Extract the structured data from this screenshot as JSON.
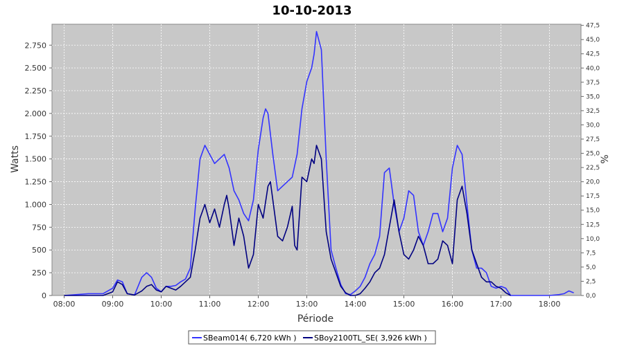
{
  "chart_data": {
    "type": "line",
    "title": "10-10-2013",
    "xlabel": "Période",
    "ylabel": "Watts",
    "y2label": "%",
    "xlim": [
      7.75,
      18.65
    ],
    "ylim": [
      0,
      2980
    ],
    "y2lim": [
      0,
      47.7
    ],
    "grid": true,
    "legend_position": "bottom",
    "plot_background": "#c8c8c8",
    "x_ticks": [
      8,
      9,
      10,
      11,
      12,
      13,
      14,
      15,
      16,
      17,
      18
    ],
    "x_tick_labels": [
      "08:00",
      "09:00",
      "10:00",
      "11:00",
      "12:00",
      "13:00",
      "14:00",
      "15:00",
      "16:00",
      "17:00",
      "18:00"
    ],
    "y_ticks": [
      0,
      250,
      500,
      750,
      1000,
      1250,
      1500,
      1750,
      2000,
      2250,
      2500,
      2750
    ],
    "y_tick_labels": [
      "0",
      "250",
      "500",
      "750",
      "1.000",
      "1.250",
      "1.500",
      "1.750",
      "2.000",
      "2.250",
      "2.500",
      "2.750"
    ],
    "y2_ticks": [
      0,
      2.5,
      5,
      7.5,
      10,
      12.5,
      15,
      17.5,
      20,
      22.5,
      25,
      27.5,
      30,
      32.5,
      35,
      37.5,
      40,
      42.5,
      45,
      47.5
    ],
    "y2_tick_labels": [
      "0,0",
      "2,5",
      "5,0",
      "7,5",
      "10,0",
      "12,5",
      "15,0",
      "17,5",
      "20,0",
      "22,5",
      "25,0",
      "27,5",
      "30,0",
      "32,5",
      "35,0",
      "37,5",
      "40,0",
      "42,5",
      "45,0",
      "47,5"
    ],
    "series": [
      {
        "name": "SBeam014( 6,720 kWh )",
        "color": "#3333ff",
        "x": [
          8.0,
          8.5,
          8.8,
          9.0,
          9.1,
          9.2,
          9.3,
          9.45,
          9.6,
          9.7,
          9.8,
          9.9,
          10.0,
          10.1,
          10.2,
          10.3,
          10.4,
          10.5,
          10.6,
          10.7,
          10.8,
          10.9,
          11.0,
          11.1,
          11.2,
          11.3,
          11.4,
          11.5,
          11.6,
          11.7,
          11.8,
          11.9,
          12.0,
          12.1,
          12.15,
          12.2,
          12.3,
          12.4,
          12.5,
          12.6,
          12.7,
          12.8,
          12.9,
          13.0,
          13.1,
          13.15,
          13.2,
          13.3,
          13.4,
          13.5,
          13.6,
          13.7,
          13.8,
          13.9,
          14.0,
          14.1,
          14.2,
          14.3,
          14.4,
          14.5,
          14.6,
          14.7,
          14.8,
          14.9,
          15.0,
          15.1,
          15.2,
          15.3,
          15.4,
          15.5,
          15.6,
          15.7,
          15.8,
          15.9,
          16.0,
          16.1,
          16.2,
          16.3,
          16.4,
          16.5,
          16.6,
          16.7,
          16.8,
          16.9,
          17.0,
          17.1,
          17.2,
          17.4,
          17.6,
          17.8,
          18.0,
          18.2,
          18.3,
          18.4,
          18.5
        ],
        "y": [
          0,
          20,
          20,
          80,
          170,
          150,
          20,
          5,
          200,
          250,
          200,
          80,
          40,
          100,
          100,
          110,
          150,
          180,
          300,
          950,
          1500,
          1650,
          1550,
          1450,
          1500,
          1550,
          1400,
          1150,
          1050,
          900,
          820,
          1050,
          1600,
          1950,
          2050,
          2000,
          1550,
          1150,
          1200,
          1250,
          1300,
          1550,
          2050,
          2350,
          2500,
          2650,
          2900,
          2700,
          1500,
          500,
          300,
          120,
          20,
          10,
          50,
          100,
          200,
          350,
          450,
          650,
          1350,
          1400,
          1000,
          700,
          850,
          1150,
          1100,
          700,
          550,
          700,
          900,
          900,
          700,
          850,
          1400,
          1650,
          1550,
          1000,
          500,
          300,
          300,
          250,
          100,
          80,
          100,
          80,
          0,
          0,
          0,
          0,
          0,
          10,
          20,
          50,
          30
        ]
      },
      {
        "name": "SBoy2100TL_SE( 3,926 kWh )",
        "color": "#000080",
        "x": [
          8.0,
          8.8,
          9.0,
          9.1,
          9.2,
          9.3,
          9.45,
          9.6,
          9.7,
          9.8,
          9.9,
          10.0,
          10.1,
          10.2,
          10.3,
          10.4,
          10.5,
          10.6,
          10.7,
          10.8,
          10.9,
          11.0,
          11.1,
          11.2,
          11.3,
          11.35,
          11.4,
          11.5,
          11.6,
          11.7,
          11.8,
          11.9,
          12.0,
          12.1,
          12.2,
          12.25,
          12.3,
          12.4,
          12.5,
          12.6,
          12.7,
          12.75,
          12.8,
          12.9,
          13.0,
          13.1,
          13.15,
          13.2,
          13.3,
          13.4,
          13.5,
          13.6,
          13.7,
          13.8,
          13.9,
          14.0,
          14.1,
          14.2,
          14.3,
          14.4,
          14.5,
          14.6,
          14.7,
          14.8,
          14.9,
          15.0,
          15.1,
          15.2,
          15.3,
          15.4,
          15.5,
          15.6,
          15.7,
          15.8,
          15.9,
          16.0,
          16.1,
          16.2,
          16.3,
          16.4,
          16.5,
          16.6,
          16.7,
          16.8,
          16.9,
          17.0,
          17.1,
          17.2
        ],
        "y": [
          0,
          0,
          40,
          150,
          120,
          20,
          5,
          50,
          100,
          120,
          60,
          40,
          100,
          80,
          60,
          100,
          150,
          200,
          500,
          850,
          1000,
          800,
          950,
          750,
          1000,
          1100,
          950,
          550,
          850,
          650,
          300,
          450,
          1000,
          850,
          1200,
          1250,
          1050,
          650,
          600,
          750,
          980,
          550,
          500,
          1300,
          1250,
          1500,
          1450,
          1650,
          1500,
          700,
          400,
          250,
          100,
          30,
          0,
          0,
          20,
          80,
          150,
          250,
          300,
          450,
          750,
          1050,
          700,
          450,
          400,
          500,
          650,
          550,
          350,
          350,
          400,
          600,
          550,
          350,
          1050,
          1200,
          900,
          500,
          350,
          200,
          150,
          150,
          100,
          80,
          30,
          0
        ]
      }
    ]
  }
}
